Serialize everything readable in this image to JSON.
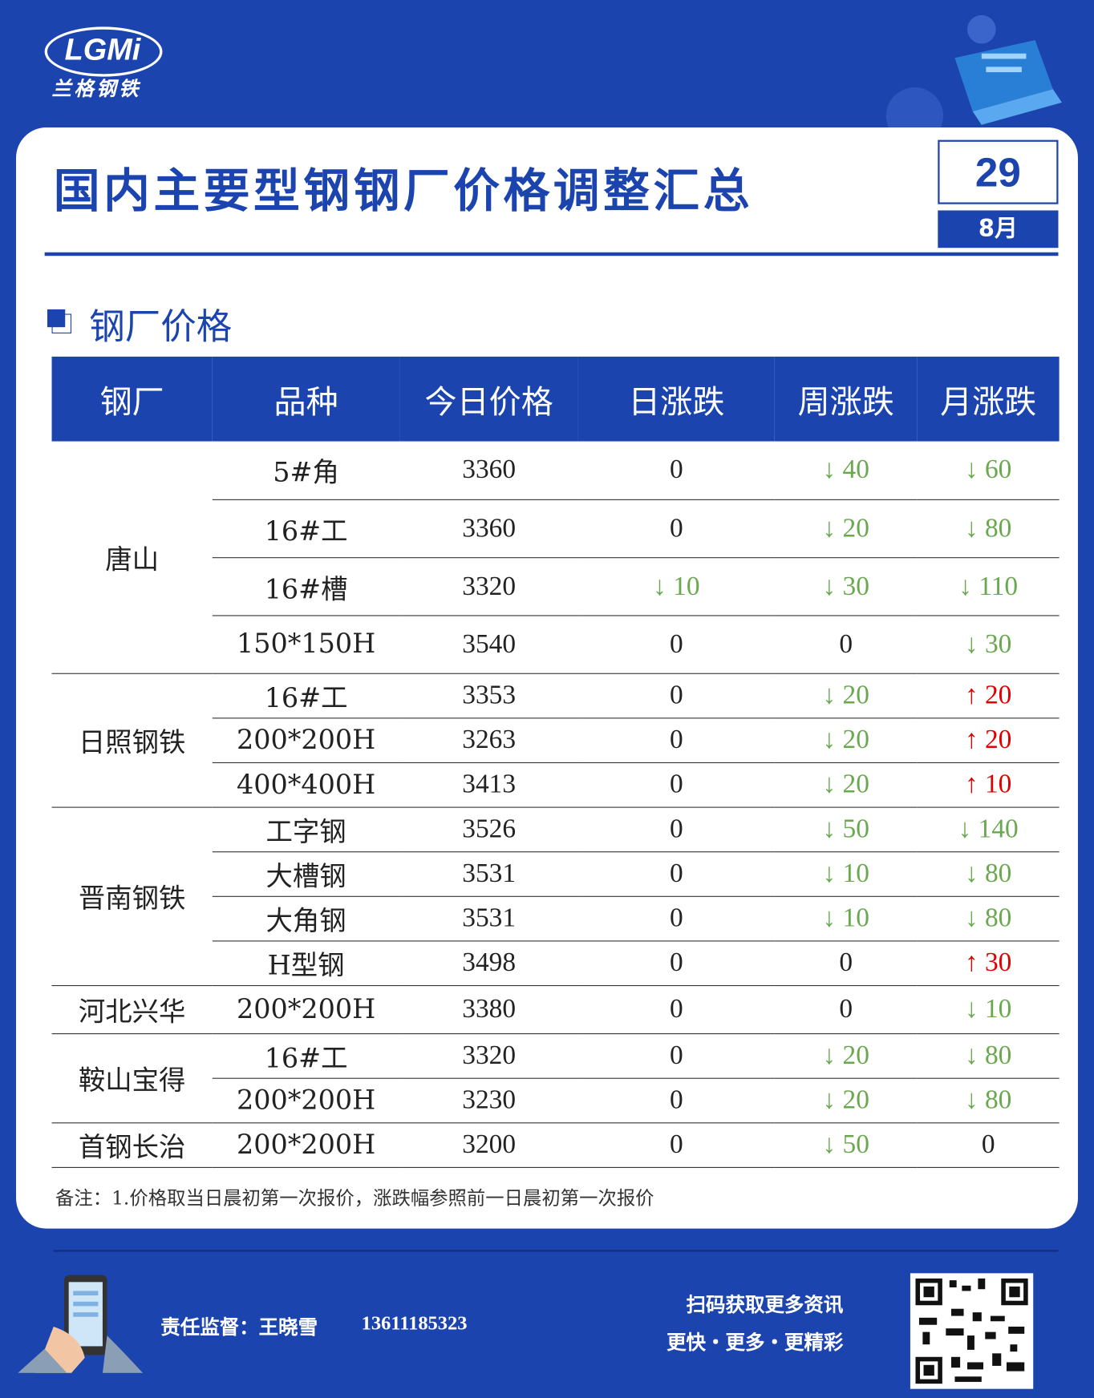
{
  "header": {
    "logo": "LGMi",
    "brand": "兰格钢铁",
    "title": "国内主要型钢钢厂价格调整汇总",
    "day": "29",
    "month": "8月"
  },
  "section_title": "钢厂价格",
  "table": {
    "headers": [
      "钢厂",
      "品种",
      "今日价格",
      "日涨跌",
      "周涨跌",
      "月涨跌"
    ],
    "groups": [
      {
        "mill": "唐山",
        "rows": [
          [
            "5#角",
            3360,
            0,
            {
              "text": "↓ 40",
              "color": "#6aa84f"
            },
            {
              "text": "↓ 60",
              "color": "#6aa84f"
            }
          ],
          [
            "16#工",
            3360,
            0,
            {
              "text": "↓ 20",
              "color": "#6aa84f"
            },
            {
              "text": "↓ 80",
              "color": "#6aa84f"
            }
          ],
          [
            "16#槽",
            3320,
            {
              "text": "↓ 10",
              "color": "#6aa84f"
            },
            {
              "text": "↓ 30",
              "color": "#6aa84f"
            },
            {
              "text": "↓ 110",
              "color": "#6aa84f"
            }
          ],
          [
            "150*150H",
            3540,
            0,
            0,
            {
              "text": "↓ 30",
              "color": "#6aa84f"
            }
          ]
        ]
      },
      {
        "mill": "日照钢铁",
        "rows": [
          [
            "16#工",
            3353,
            0,
            {
              "text": "↓ 20",
              "color": "#6aa84f"
            },
            {
              "text": "↑ 20",
              "color": "#e00000"
            }
          ],
          [
            "200*200H",
            3263,
            0,
            {
              "text": "↓ 20",
              "color": "#6aa84f"
            },
            {
              "text": "↑ 20",
              "color": "#e00000"
            }
          ],
          [
            "400*400H",
            3413,
            0,
            {
              "text": "↓ 20",
              "color": "#6aa84f"
            },
            {
              "text": "↑ 10",
              "color": "#e00000"
            }
          ]
        ]
      },
      {
        "mill": "晋南钢铁",
        "rows": [
          [
            "工字钢",
            3526,
            0,
            {
              "text": "↓ 50",
              "color": "#6aa84f"
            },
            {
              "text": "↓ 140",
              "color": "#6aa84f"
            }
          ],
          [
            "大槽钢",
            3531,
            0,
            {
              "text": "↓ 10",
              "color": "#6aa84f"
            },
            {
              "text": "↓ 80",
              "color": "#6aa84f"
            }
          ],
          [
            "大角钢",
            3531,
            0,
            {
              "text": "↓ 10",
              "color": "#6aa84f"
            },
            {
              "text": "↓ 80",
              "color": "#6aa84f"
            }
          ],
          [
            "H型钢",
            3498,
            0,
            0,
            {
              "text": "↑ 30",
              "color": "#e00000"
            }
          ]
        ]
      },
      {
        "mill": "河北兴华",
        "rows": [
          [
            "200*200H",
            3380,
            0,
            0,
            {
              "text": "↓ 10",
              "color": "#6aa84f"
            }
          ]
        ]
      },
      {
        "mill": "鞍山宝得",
        "rows": [
          [
            "16#工",
            3320,
            0,
            {
              "text": "↓ 20",
              "color": "#6aa84f"
            },
            {
              "text": "↓ 80",
              "color": "#6aa84f"
            }
          ],
          [
            "200*200H",
            3230,
            0,
            {
              "text": "↓ 20",
              "color": "#6aa84f"
            },
            {
              "text": "↓ 80",
              "color": "#6aa84f"
            }
          ]
        ]
      },
      {
        "mill": "首钢长治",
        "rows": [
          [
            "200*200H",
            3200,
            0,
            {
              "text": "↓ 50",
              "color": "#6aa84f"
            },
            0
          ]
        ]
      }
    ]
  },
  "note": "备注：1.价格取当日晨初第一次报价，涨跌幅参照前一日晨初第一次报价",
  "footer": {
    "supervisor": "责任监督：王晓雪",
    "phone": "13611185323",
    "scan": "扫码获取更多资讯",
    "slogan": "更快・更多・更精彩"
  }
}
